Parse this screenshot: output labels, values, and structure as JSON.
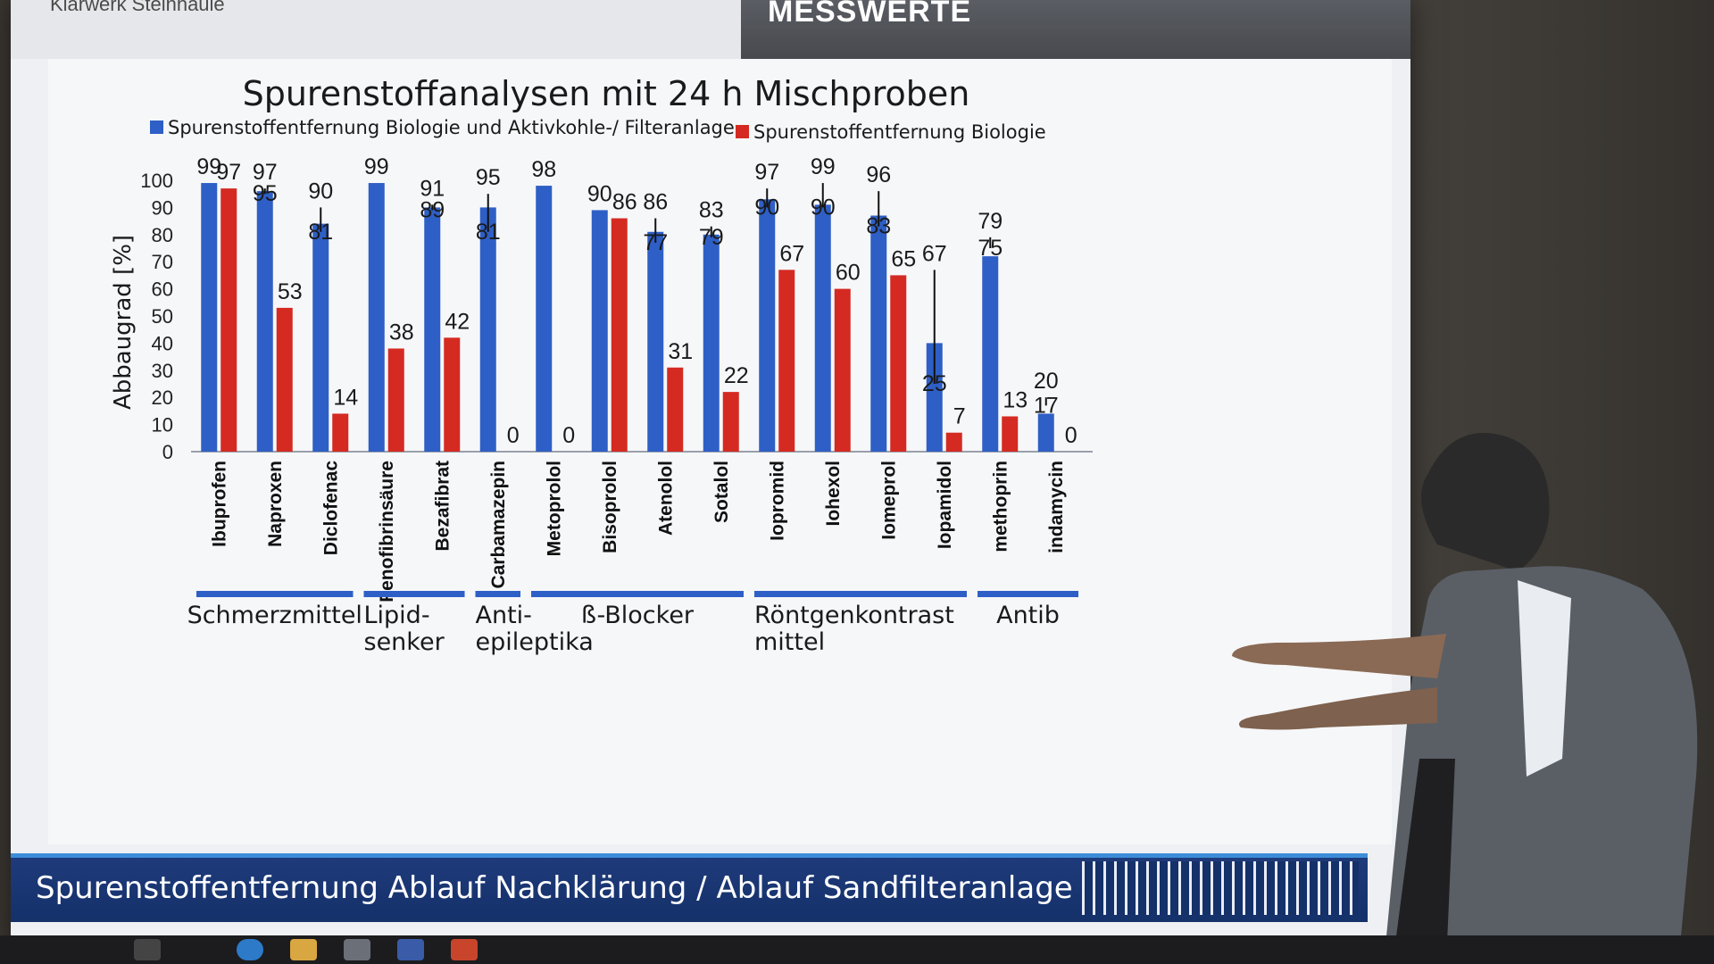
{
  "header": {
    "left_label": "Klärwerk Steinhäule",
    "right_label": "MESSWERTE"
  },
  "footer": {
    "title": "Spurenstoffentfernung Ablauf Nachklärung / Ablauf Sandfilteranlage"
  },
  "chart_data": {
    "type": "bar",
    "title": "Spurenstoffanalysen mit 24 h Mischproben",
    "ylabel": "Abbaugrad [%]",
    "xlabel": "",
    "ylim": [
      0,
      100
    ],
    "yticks": [
      "0",
      "10",
      "20",
      "30",
      "40",
      "50",
      "60",
      "70",
      "80",
      "90",
      "100"
    ],
    "legend_position": "top",
    "categories": [
      "Ibuprofen",
      "Naproxen",
      "Diclofenac",
      "Fenofibrinsäure",
      "Bezafibrat",
      "Carbamazepin",
      "Metoprolol",
      "Bisoprolol",
      "Atenolol",
      "Sotalol",
      "Iopromid",
      "Iohexol",
      "Iomeprol",
      "Iopamidol",
      "methoprin",
      "indamycin"
    ],
    "series": [
      {
        "name": "Spurenstoffentfernung Biologie und Aktivkohle-/ Filteranlage",
        "color": "#2e5fc6",
        "values": [
          99,
          96,
          84,
          99,
          90,
          90,
          98,
          89,
          81,
          80,
          93,
          91,
          87,
          40,
          72,
          14
        ],
        "max_labels": [
          "99",
          "97",
          "90",
          "99",
          "91",
          "95",
          "98",
          "90",
          "86",
          "83",
          "97",
          "99",
          "96",
          "67",
          "79",
          "20"
        ],
        "min_labels": [
          "",
          "95",
          "81",
          "",
          "89",
          "81",
          "",
          "",
          "77",
          "79",
          "90",
          "90",
          "83",
          "25",
          "75",
          "17"
        ],
        "whisker_high": [
          null,
          97,
          90,
          null,
          91,
          95,
          null,
          null,
          86,
          83,
          97,
          99,
          96,
          67,
          79,
          20
        ],
        "whisker_low": [
          null,
          95,
          81,
          null,
          89,
          81,
          null,
          null,
          77,
          79,
          90,
          90,
          83,
          25,
          75,
          17
        ]
      },
      {
        "name": "Spurenstoffentfernung Biologie",
        "color": "#d42a22",
        "values": [
          97,
          53,
          14,
          38,
          42,
          0,
          0,
          86,
          31,
          22,
          67,
          60,
          65,
          7,
          13,
          0
        ],
        "labels": [
          "97",
          "53",
          "14",
          "38",
          "42",
          "0",
          "0",
          "86",
          "31",
          "22",
          "67",
          "60",
          "65",
          "7",
          "13",
          "0"
        ]
      }
    ],
    "groups": [
      {
        "label_lines": [
          "Schmerzmittel"
        ],
        "from": 0,
        "to": 2
      },
      {
        "label_lines": [
          "Lipid-",
          "senker"
        ],
        "from": 3,
        "to": 4
      },
      {
        "label_lines": [
          "Anti-",
          "epileptika"
        ],
        "from": 5,
        "to": 5
      },
      {
        "label_lines": [
          "ß-Blocker"
        ],
        "from": 6,
        "to": 9
      },
      {
        "label_lines": [
          "Röntgenkontrast",
          "mittel"
        ],
        "from": 10,
        "to": 13
      },
      {
        "label_lines": [
          "Antib"
        ],
        "from": 14,
        "to": 15
      }
    ]
  }
}
